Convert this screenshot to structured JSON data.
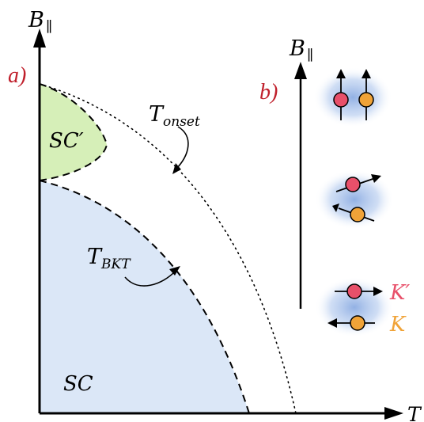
{
  "colors": {
    "sc_fill": "#dbe7f7",
    "sc_prime_fill": "#d6efb8",
    "panel_label": "#c0202c",
    "k_prime": "#e8506a",
    "k": "#f0a338",
    "glow": "#9fbbe6",
    "stroke": "#000000"
  },
  "panel_a": {
    "label": "a)",
    "y_axis_label_main": "B",
    "y_axis_label_sub": "∥",
    "x_axis_label": "T",
    "region_sc": "SC",
    "region_sc_prime": "SC′",
    "curve_onset_main": "T",
    "curve_onset_sub": "onset",
    "curve_bkt_main": "T",
    "curve_bkt_sub": "BKT"
  },
  "panel_b": {
    "label": "b)",
    "axis_label_main": "B",
    "axis_label_sub": "∥",
    "legend_k_prime": "K′",
    "legend_k": "K",
    "pair_states": [
      "parallel-up",
      "canted",
      "antiparallel"
    ]
  }
}
